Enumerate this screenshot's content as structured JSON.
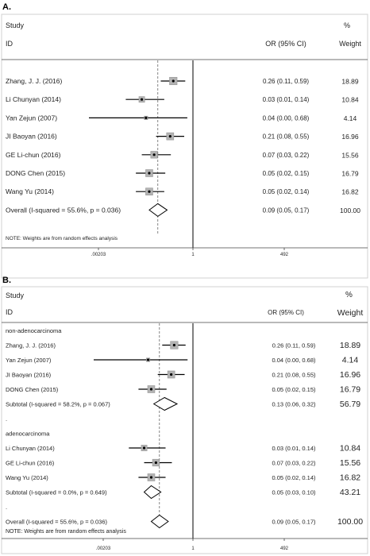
{
  "chart_data": [
    {
      "type": "forest",
      "panel_label": "A.",
      "header": {
        "study": "Study",
        "id": "ID",
        "ci": "OR (95% CI)",
        "pct": "%",
        "weight": "Weight"
      },
      "x_scale": "log",
      "x_ticks": [
        {
          "value": 0.00203,
          "label": ".00203"
        },
        {
          "value": 1,
          "label": "1"
        },
        {
          "value": 492,
          "label": "492"
        }
      ],
      "reference_line": 1,
      "overall_dashed_line": 0.09,
      "rows": [
        {
          "kind": "study",
          "label": "Zhang, J. J. (2016)",
          "or": 0.26,
          "lo": 0.11,
          "hi": 0.59,
          "ci_text": "0.26 (0.11, 0.59)",
          "weight": 18.89,
          "weight_text": "18.89"
        },
        {
          "kind": "study",
          "label": "Li Chunyan (2014)",
          "or": 0.03,
          "lo": 0.01,
          "hi": 0.14,
          "ci_text": "0.03 (0.01, 0.14)",
          "weight": 10.84,
          "weight_text": "10.84"
        },
        {
          "kind": "study",
          "label": "Yan Zejun (2007)",
          "or": 0.04,
          "lo": 0.0,
          "hi": 0.68,
          "ci_text": "0.04 (0.00, 0.68)",
          "weight": 4.14,
          "weight_text": "4.14"
        },
        {
          "kind": "study",
          "label": "JI Baoyan (2016)",
          "or": 0.21,
          "lo": 0.08,
          "hi": 0.55,
          "ci_text": "0.21 (0.08, 0.55)",
          "weight": 16.96,
          "weight_text": "16.96"
        },
        {
          "kind": "study",
          "label": "GE Li-chun (2016)",
          "or": 0.07,
          "lo": 0.03,
          "hi": 0.22,
          "ci_text": "0.07 (0.03, 0.22)",
          "weight": 15.56,
          "weight_text": "15.56"
        },
        {
          "kind": "study",
          "label": "DONG Chen (2015)",
          "or": 0.05,
          "lo": 0.02,
          "hi": 0.15,
          "ci_text": "0.05 (0.02, 0.15)",
          "weight": 16.79,
          "weight_text": "16.79"
        },
        {
          "kind": "study",
          "label": "Wang Yu (2014)",
          "or": 0.05,
          "lo": 0.02,
          "hi": 0.14,
          "ci_text": "0.05 (0.02, 0.14)",
          "weight": 16.82,
          "weight_text": "16.82"
        },
        {
          "kind": "overall",
          "label": "Overall  (I-squared = 55.6%, p = 0.036)",
          "or": 0.09,
          "lo": 0.05,
          "hi": 0.17,
          "ci_text": "0.09 (0.05, 0.17)",
          "weight": 100.0,
          "weight_text": "100.00"
        }
      ],
      "note": "NOTE: Weights are from random effects analysis"
    },
    {
      "type": "forest",
      "panel_label": "B.",
      "header": {
        "study": "Study",
        "id": "ID",
        "ci": "OR (95% CI)",
        "pct": "%",
        "weight": "Weight"
      },
      "x_scale": "log",
      "x_ticks": [
        {
          "value": 0.00203,
          "label": ".00203"
        },
        {
          "value": 1,
          "label": "1"
        },
        {
          "value": 492,
          "label": "492"
        }
      ],
      "reference_line": 1,
      "overall_dashed_line": 0.09,
      "rows": [
        {
          "kind": "group",
          "label": "non-adenocarcinoma"
        },
        {
          "kind": "study",
          "label": "Zhang, J. J. (2016)",
          "or": 0.26,
          "lo": 0.11,
          "hi": 0.59,
          "ci_text": "0.26 (0.11, 0.59)",
          "weight": 18.89,
          "weight_text": "18.89"
        },
        {
          "kind": "study",
          "label": "Yan Zejun (2007)",
          "or": 0.04,
          "lo": 0.0,
          "hi": 0.68,
          "ci_text": "0.04 (0.00, 0.68)",
          "weight": 4.14,
          "weight_text": "4.14"
        },
        {
          "kind": "study",
          "label": "JI Baoyan (2016)",
          "or": 0.21,
          "lo": 0.08,
          "hi": 0.55,
          "ci_text": "0.21 (0.08, 0.55)",
          "weight": 16.96,
          "weight_text": "16.96"
        },
        {
          "kind": "study",
          "label": "DONG Chen (2015)",
          "or": 0.05,
          "lo": 0.02,
          "hi": 0.15,
          "ci_text": "0.05 (0.02, 0.15)",
          "weight": 16.79,
          "weight_text": "16.79"
        },
        {
          "kind": "subtotal",
          "label": "Subtotal  (I-squared = 58.2%, p = 0.067)",
          "or": 0.13,
          "lo": 0.06,
          "hi": 0.32,
          "ci_text": "0.13 (0.06, 0.32)",
          "weight": 56.79,
          "weight_text": "56.79"
        },
        {
          "kind": "spacer",
          "label": "."
        },
        {
          "kind": "group",
          "label": "adenocarcinoma"
        },
        {
          "kind": "study",
          "label": "Li Chunyan (2014)",
          "or": 0.03,
          "lo": 0.01,
          "hi": 0.14,
          "ci_text": "0.03 (0.01, 0.14)",
          "weight": 10.84,
          "weight_text": "10.84"
        },
        {
          "kind": "study",
          "label": "GE Li-chun (2016)",
          "or": 0.07,
          "lo": 0.03,
          "hi": 0.22,
          "ci_text": "0.07 (0.03, 0.22)",
          "weight": 15.56,
          "weight_text": "15.56"
        },
        {
          "kind": "study",
          "label": "Wang Yu (2014)",
          "or": 0.05,
          "lo": 0.02,
          "hi": 0.14,
          "ci_text": "0.05 (0.02, 0.14)",
          "weight": 16.82,
          "weight_text": "16.82"
        },
        {
          "kind": "subtotal",
          "label": "Subtotal  (I-squared = 0.0%, p = 0.649)",
          "or": 0.05,
          "lo": 0.03,
          "hi": 0.1,
          "ci_text": "0.05 (0.03, 0.10)",
          "weight": 43.21,
          "weight_text": "43.21"
        },
        {
          "kind": "spacer",
          "label": "."
        },
        {
          "kind": "overall",
          "label": "Overall  (I-squared = 55.6%, p = 0.036)",
          "or": 0.09,
          "lo": 0.05,
          "hi": 0.17,
          "ci_text": "0.09 (0.05, 0.17)",
          "weight": 100.0,
          "weight_text": "100.00"
        }
      ],
      "note": "NOTE: Weights are from random effects analysis"
    }
  ]
}
